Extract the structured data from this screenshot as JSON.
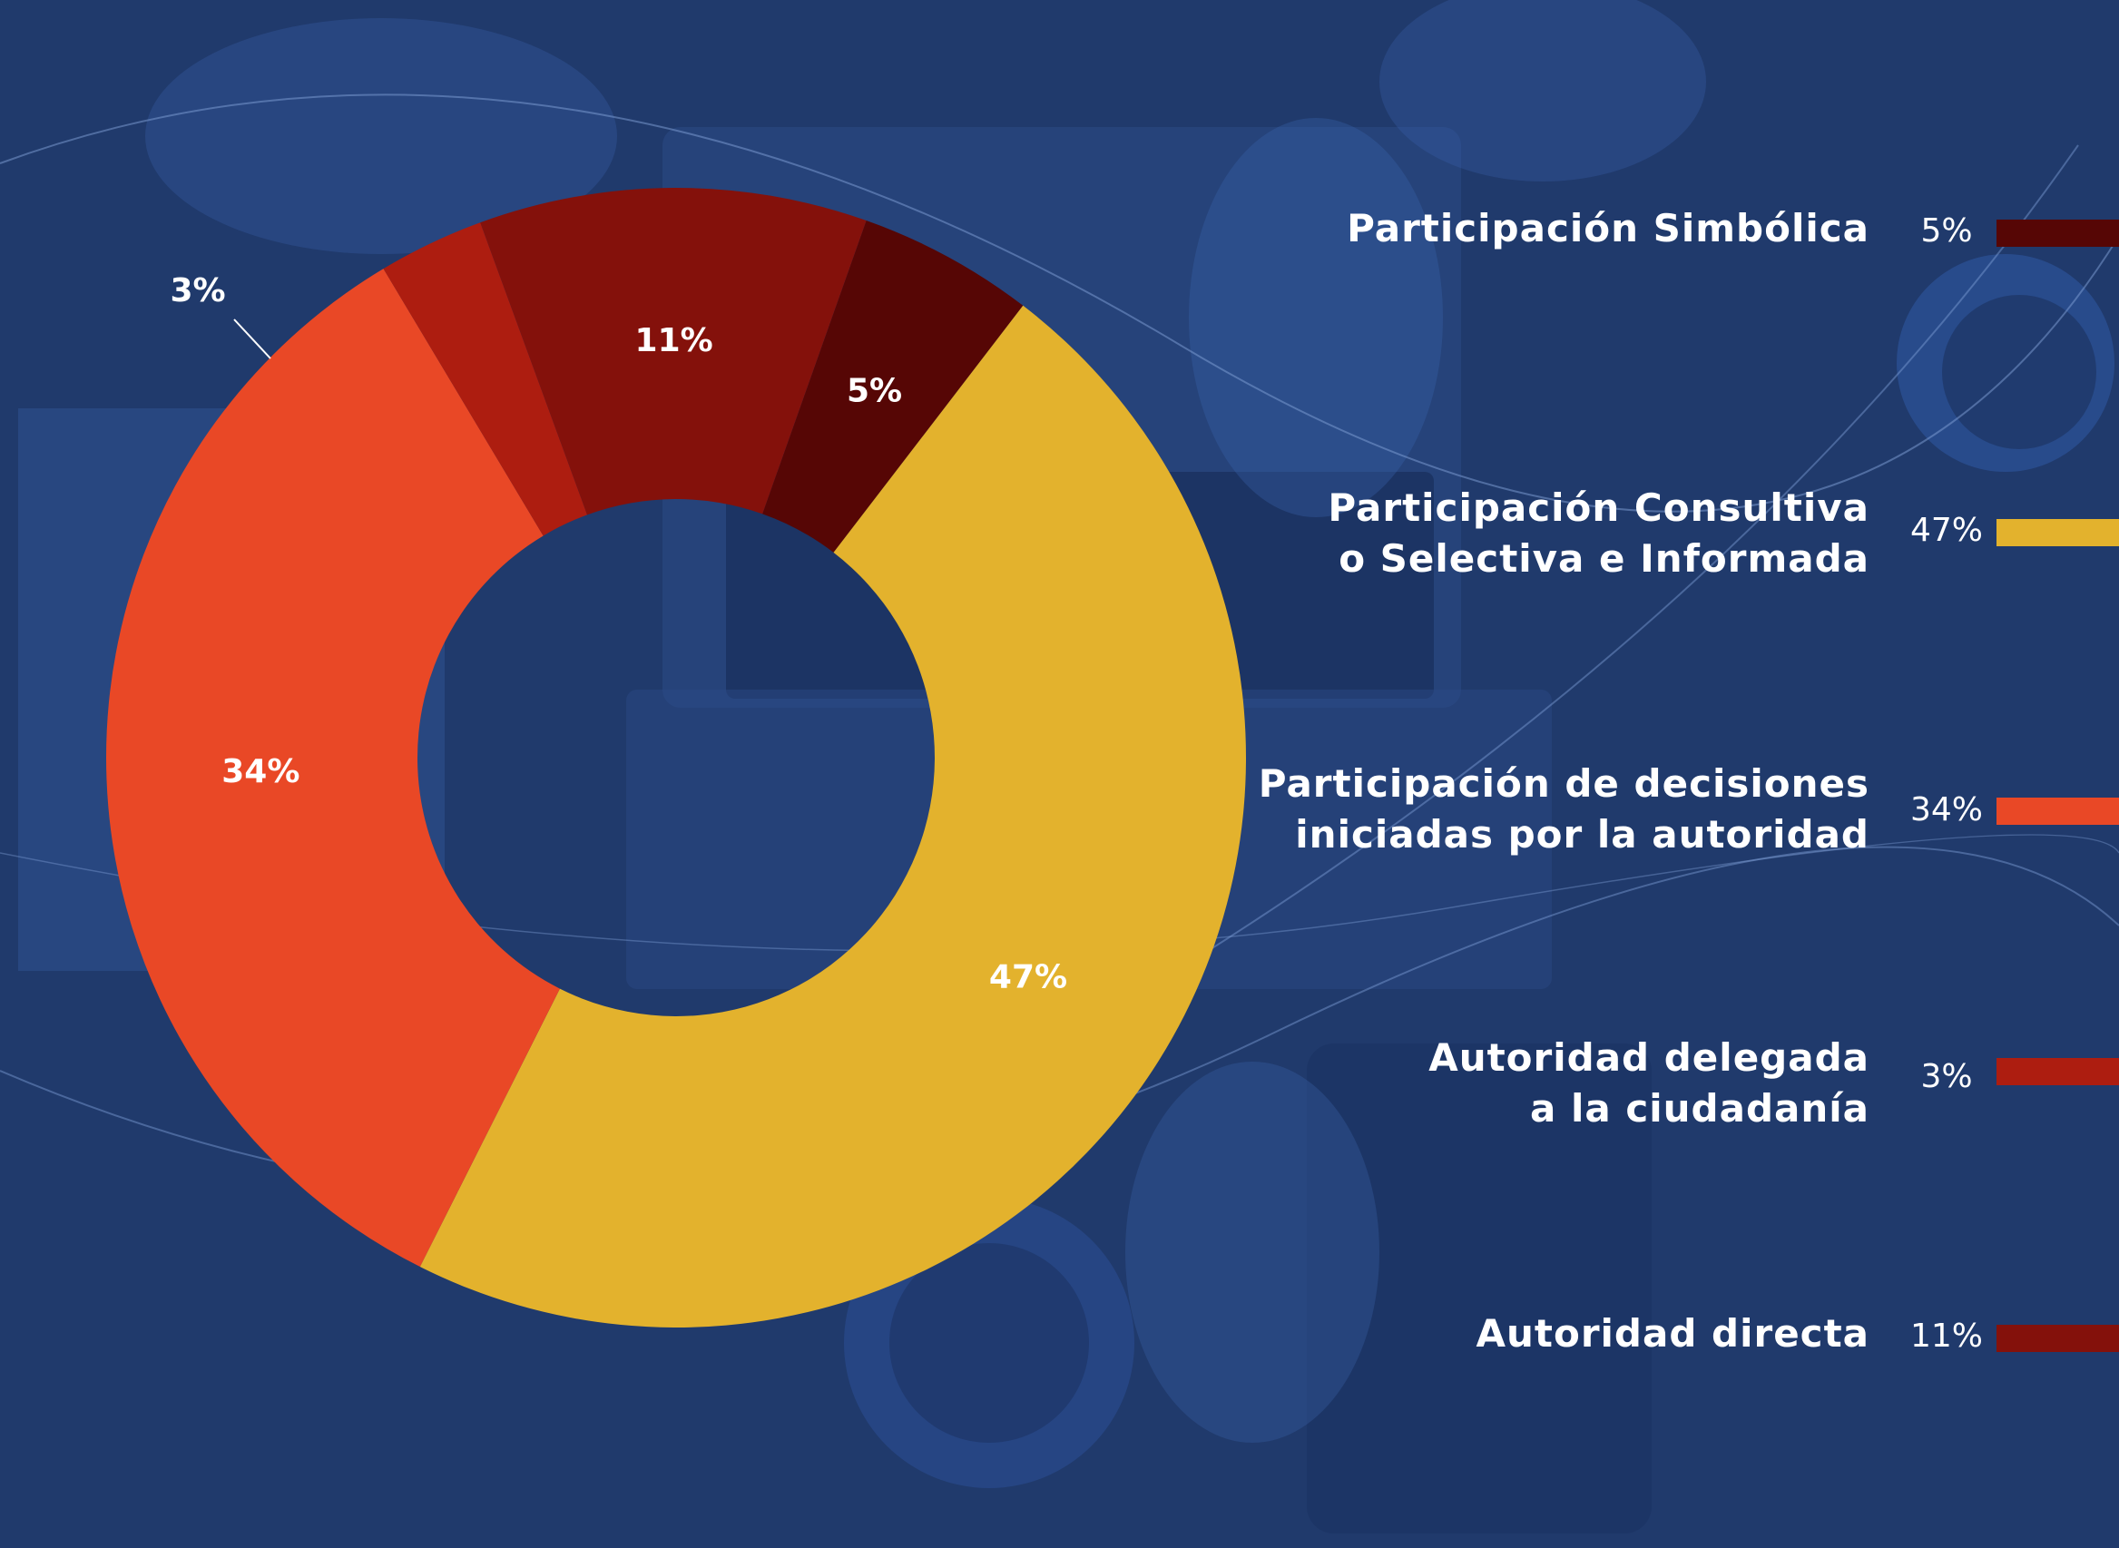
{
  "chart_data": {
    "type": "pie",
    "donut": true,
    "slices": [
      {
        "label": "Participación Simbólica",
        "value": 5,
        "display": "5%",
        "color": "#560605"
      },
      {
        "label": "Participación Consultiva\no Selectiva e Informada",
        "value": 47,
        "display": "47%",
        "color": "#e3b22d"
      },
      {
        "label": "Participación de decisiones\niniciadas por la autoridad",
        "value": 34,
        "display": "34%",
        "color": "#e94826"
      },
      {
        "label": "Autoridad delegada\na la ciudadanía",
        "value": 3,
        "display": "3%",
        "color": "#ad1d10"
      },
      {
        "label": "Autoridad directa",
        "value": 11,
        "display": "11%",
        "color": "#84110b"
      }
    ],
    "legend_position": "right"
  },
  "colors": {
    "background": "#1f3768",
    "text": "#ffffff"
  }
}
